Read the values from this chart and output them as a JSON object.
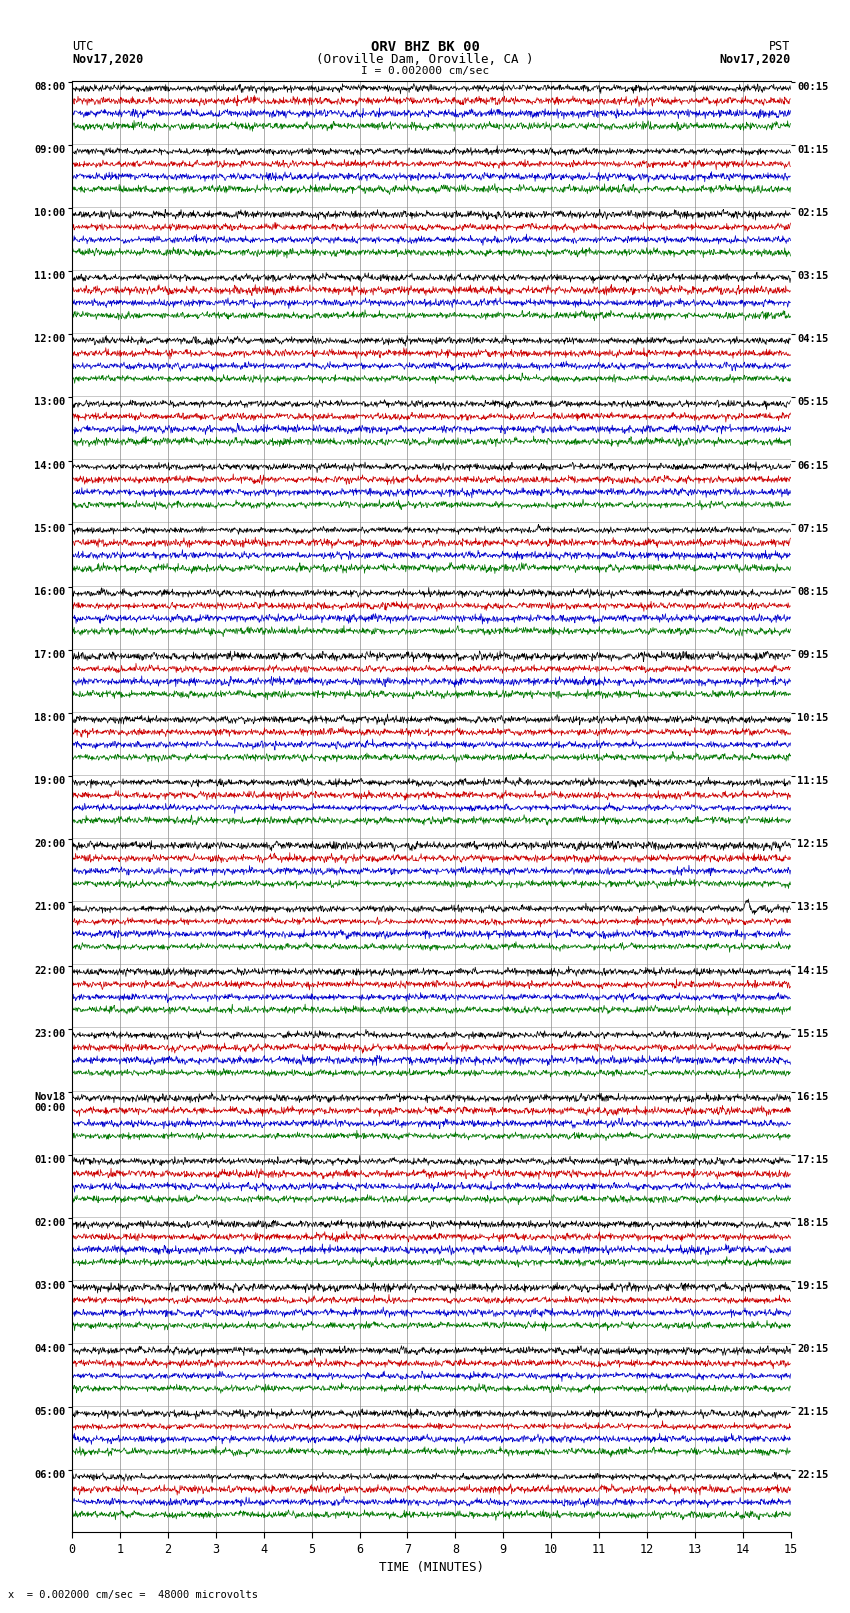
{
  "title_line1": "ORV BHZ BK 00",
  "title_line2": "(Oroville Dam, Oroville, CA )",
  "scale_text": "I = 0.002000 cm/sec",
  "left_header": "UTC",
  "left_date": "Nov17,2020",
  "right_header": "PST",
  "right_date": "Nov17,2020",
  "footer_text": "x  = 0.002000 cm/sec =  48000 microvolts",
  "xlabel": "TIME (MINUTES)",
  "bg_color": "#ffffff",
  "trace_colors": [
    "#000000",
    "#cc0000",
    "#0000cc",
    "#007700"
  ],
  "n_rows": 23,
  "minutes_per_row": 15,
  "noise_amplitude": 0.06,
  "earthquake_row": 13,
  "earthquake_minute": 14.0,
  "earthquake_amplitude": 0.55,
  "utc_labels": [
    "08:00",
    "09:00",
    "10:00",
    "11:00",
    "12:00",
    "13:00",
    "14:00",
    "15:00",
    "16:00",
    "17:00",
    "18:00",
    "19:00",
    "20:00",
    "21:00",
    "22:00",
    "23:00",
    "Nov18\n00:00",
    "01:00",
    "02:00",
    "03:00",
    "04:00",
    "05:00",
    "06:00"
  ],
  "pst_labels": [
    "00:15",
    "01:15",
    "02:15",
    "03:15",
    "04:15",
    "05:15",
    "06:15",
    "07:15",
    "08:15",
    "09:15",
    "10:15",
    "11:15",
    "12:15",
    "13:15",
    "14:15",
    "15:15",
    "16:15",
    "17:15",
    "18:15",
    "19:15",
    "20:15",
    "21:15",
    "22:15"
  ]
}
